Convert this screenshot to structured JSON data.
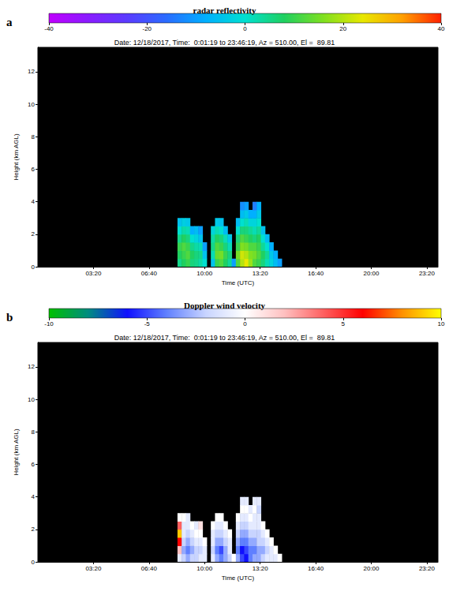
{
  "chart_data": [
    {
      "type": "heatmap",
      "annotation": "a",
      "title": "radar reflectivity",
      "subtitle": "Date: 12/18/2017, Time:  0:01:19 to 23:46:19, Az = 510.00, El =  89.81",
      "xlabel": "Time (UTC)",
      "ylabel": "Height (km AGL)",
      "xlim": [
        0,
        1440
      ],
      "xticks": [
        {
          "value": 200,
          "label": "03:20"
        },
        {
          "value": 400,
          "label": "06:40"
        },
        {
          "value": 600,
          "label": "10:00"
        },
        {
          "value": 800,
          "label": "13:20"
        },
        {
          "value": 1000,
          "label": "16:40"
        },
        {
          "value": 1200,
          "label": "20:00"
        },
        {
          "value": 1400,
          "label": "23:20"
        }
      ],
      "ylim": [
        0,
        13.5
      ],
      "yticks": [
        0,
        2,
        4,
        6,
        8,
        10,
        12
      ],
      "grid": false,
      "colorbar": {
        "range": [
          -40,
          40
        ],
        "ticks": [
          -40,
          -20,
          0,
          20,
          40
        ]
      },
      "x": [
        510,
        525,
        540,
        555,
        570,
        585,
        600,
        615,
        630,
        645,
        660,
        675,
        690,
        705,
        720,
        735,
        750,
        765,
        780,
        795,
        810,
        825,
        840,
        855,
        870,
        885
      ],
      "y": [
        0.25,
        0.75,
        1.25,
        1.75,
        2.25,
        2.75,
        3.25,
        3.75,
        4.25
      ],
      "values": [
        [
          5,
          8,
          10,
          5,
          0,
          -5,
          null,
          null,
          null
        ],
        [
          8,
          10,
          12,
          8,
          3,
          -3,
          null,
          null,
          null
        ],
        [
          10,
          12,
          10,
          6,
          2,
          -4,
          null,
          null,
          null
        ],
        [
          6,
          8,
          5,
          0,
          -8,
          null,
          null,
          null,
          null
        ],
        [
          5,
          6,
          3,
          -2,
          -6,
          null,
          null,
          null,
          null
        ],
        [
          3,
          5,
          2,
          -5,
          -10,
          null,
          null,
          null,
          null
        ],
        [
          0,
          -5,
          -10,
          null,
          null,
          null,
          null,
          null,
          null
        ],
        [
          null,
          null,
          null,
          null,
          null,
          null,
          null,
          null,
          null
        ],
        [
          -5,
          2,
          5,
          3,
          -2,
          null,
          null,
          null,
          null
        ],
        [
          10,
          14,
          12,
          8,
          2,
          -4,
          null,
          null,
          null
        ],
        [
          12,
          15,
          10,
          6,
          0,
          -5,
          null,
          null,
          null
        ],
        [
          8,
          10,
          6,
          2,
          -6,
          null,
          null,
          null,
          null
        ],
        [
          4,
          6,
          2,
          -4,
          null,
          null,
          null,
          null,
          null
        ],
        [
          -10,
          null,
          null,
          null,
          null,
          null,
          null,
          null,
          null
        ],
        [
          12,
          15,
          10,
          6,
          0,
          -6,
          null,
          null,
          null
        ],
        [
          20,
          22,
          16,
          12,
          6,
          0,
          -6,
          -12,
          null
        ],
        [
          24,
          20,
          15,
          10,
          6,
          2,
          -4,
          -10,
          null
        ],
        [
          18,
          16,
          12,
          8,
          4,
          -2,
          -8,
          null,
          null
        ],
        [
          12,
          15,
          12,
          6,
          2,
          -2,
          -8,
          -14,
          null
        ],
        [
          10,
          12,
          10,
          8,
          4,
          0,
          -4,
          -8,
          null
        ],
        [
          6,
          8,
          4,
          0,
          -5,
          null,
          null,
          null,
          null
        ],
        [
          2,
          4,
          0,
          -6,
          null,
          null,
          null,
          null,
          null
        ],
        [
          -2,
          -4,
          -8,
          null,
          null,
          null,
          null,
          null,
          null
        ],
        [
          -6,
          -8,
          null,
          null,
          null,
          null,
          null,
          null,
          null
        ],
        [
          -10,
          null,
          null,
          null,
          null,
          null,
          null,
          null,
          null
        ],
        [
          null,
          null,
          null,
          null,
          null,
          null,
          null,
          null,
          null
        ]
      ]
    },
    {
      "type": "heatmap",
      "annotation": "b",
      "title": "Doppler wind velocity",
      "subtitle": "Date: 12/18/2017, Time:  0:01:19 to 23:46:19, Az = 510.00, El =  89.81",
      "xlabel": "Time (UTC)",
      "ylabel": "Height (km AGL)",
      "xlim": [
        0,
        1440
      ],
      "xticks": [
        {
          "value": 200,
          "label": "03:20"
        },
        {
          "value": 400,
          "label": "06:40"
        },
        {
          "value": 600,
          "label": "10:00"
        },
        {
          "value": 800,
          "label": "13:20"
        },
        {
          "value": 1000,
          "label": "16:40"
        },
        {
          "value": 1200,
          "label": "20:00"
        },
        {
          "value": 1400,
          "label": "23:20"
        }
      ],
      "ylim": [
        0,
        13.5
      ],
      "yticks": [
        0,
        2,
        4,
        6,
        8,
        10,
        12
      ],
      "grid": false,
      "colorbar": {
        "range": [
          -10,
          10
        ],
        "ticks": [
          -10,
          -5,
          0,
          5,
          10
        ]
      },
      "x": [
        510,
        525,
        540,
        555,
        570,
        585,
        600,
        615,
        630,
        645,
        660,
        675,
        690,
        705,
        720,
        735,
        750,
        765,
        780,
        795,
        810,
        825,
        840,
        855,
        870,
        885
      ],
      "y": [
        0.25,
        0.75,
        1.25,
        1.75,
        2.25,
        2.75,
        3.25,
        3.75,
        4.25
      ],
      "values": [
        [
          -1,
          2,
          6,
          9,
          4,
          0,
          null,
          null,
          null
        ],
        [
          -2,
          -3,
          -2,
          -1,
          -1,
          0,
          null,
          null,
          null
        ],
        [
          -3,
          -4,
          -3,
          -2,
          -1,
          -1,
          null,
          null,
          null
        ],
        [
          -2,
          -3,
          -2,
          -1,
          0,
          null,
          null,
          null,
          null
        ],
        [
          -2,
          -2,
          -1,
          0,
          -1,
          null,
          null,
          null,
          null
        ],
        [
          -1,
          -2,
          -1,
          0,
          1,
          null,
          null,
          null,
          null
        ],
        [
          -1,
          -1,
          0,
          null,
          null,
          null,
          null,
          null,
          null
        ],
        [
          null,
          null,
          null,
          null,
          null,
          null,
          null,
          null,
          null
        ],
        [
          -1,
          -2,
          -1,
          -1,
          0,
          null,
          null,
          null,
          null
        ],
        [
          -3,
          -4,
          -3,
          -2,
          -1,
          0,
          null,
          null,
          null
        ],
        [
          -4,
          -5,
          -3,
          -2,
          -1,
          0,
          null,
          null,
          null
        ],
        [
          -3,
          -3,
          -2,
          -1,
          0,
          null,
          null,
          null,
          null
        ],
        [
          -2,
          -1,
          -1,
          0,
          null,
          null,
          null,
          null,
          null
        ],
        [
          0,
          null,
          null,
          null,
          null,
          null,
          null,
          null,
          null
        ],
        [
          -3,
          -4,
          -3,
          -2,
          -1,
          0,
          null,
          null,
          null
        ],
        [
          -5,
          -6,
          -4,
          -3,
          -2,
          -1,
          0,
          -1,
          null
        ],
        [
          -6,
          -5,
          -4,
          -3,
          -2,
          -1,
          0,
          -1,
          null
        ],
        [
          -4,
          -4,
          -3,
          -2,
          -1,
          0,
          -1,
          null,
          null
        ],
        [
          -3,
          -4,
          -3,
          -2,
          -1,
          -1,
          0,
          -1,
          null
        ],
        [
          -3,
          -3,
          -2,
          -2,
          -1,
          -1,
          -2,
          -1,
          null
        ],
        [
          -2,
          -3,
          -2,
          -1,
          0,
          null,
          null,
          null,
          null
        ],
        [
          -1,
          -2,
          -1,
          0,
          null,
          null,
          null,
          null,
          null
        ],
        [
          -1,
          -1,
          0,
          null,
          null,
          null,
          null,
          null,
          null
        ],
        [
          -1,
          0,
          null,
          null,
          null,
          null,
          null,
          null,
          null
        ],
        [
          0,
          null,
          null,
          null,
          null,
          null,
          null,
          null,
          null
        ],
        [
          null,
          null,
          null,
          null,
          null,
          null,
          null,
          null,
          null
        ]
      ]
    }
  ]
}
